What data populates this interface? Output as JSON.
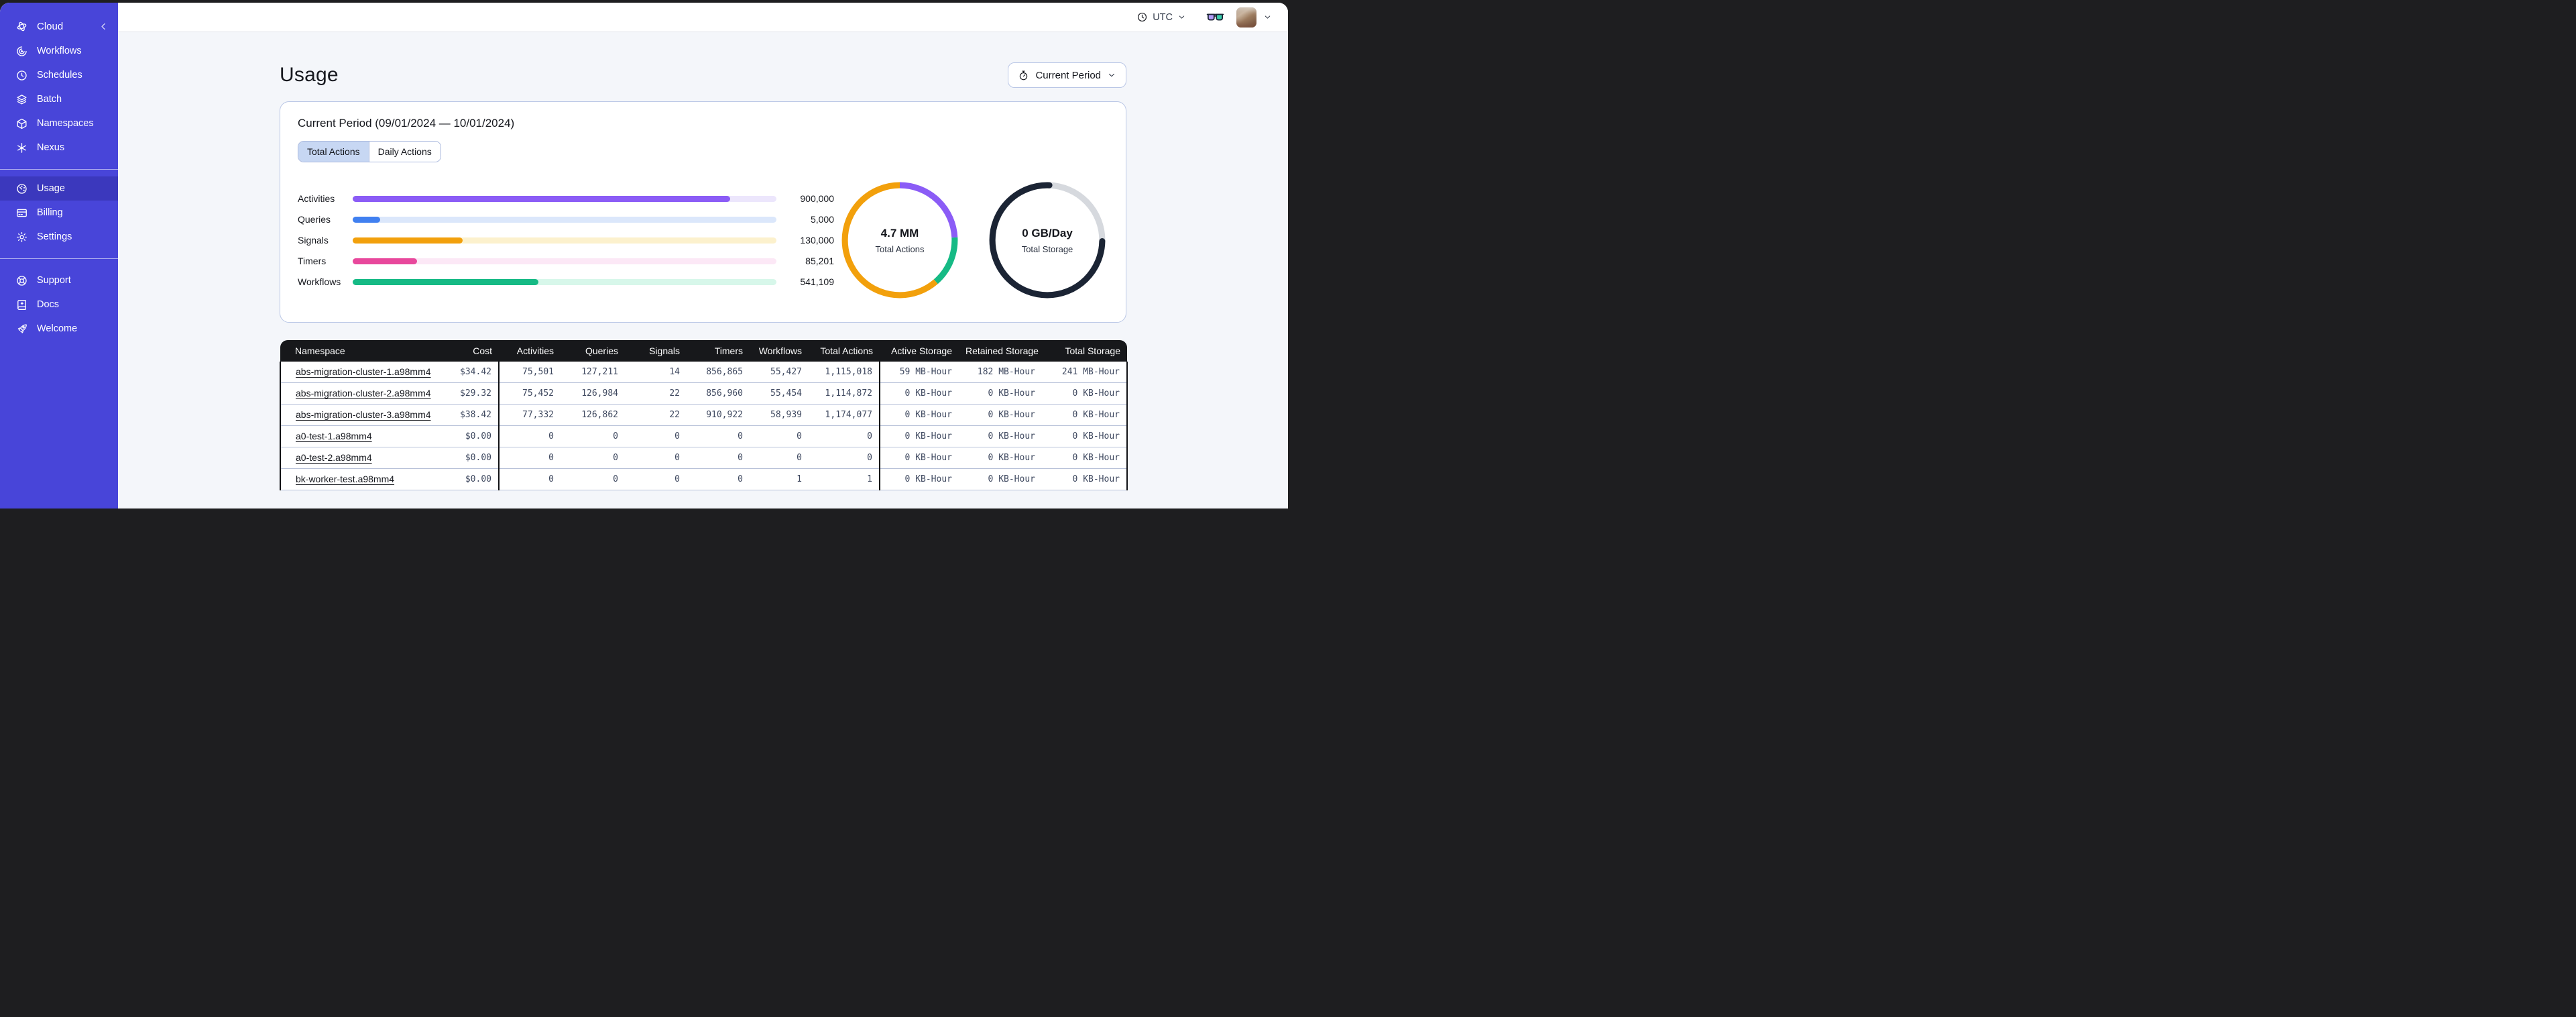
{
  "sidebar": {
    "brand_label": "Cloud",
    "brand_icon": "temporal-logo-icon",
    "collapse_icon": "chevron-left-icon",
    "groups": [
      {
        "items": [
          {
            "label": "Workflows",
            "icon": "workflows-icon",
            "active": false
          },
          {
            "label": "Schedules",
            "icon": "schedules-icon",
            "active": false
          },
          {
            "label": "Batch",
            "icon": "batch-icon",
            "active": false
          },
          {
            "label": "Namespaces",
            "icon": "namespaces-icon",
            "active": false
          },
          {
            "label": "Nexus",
            "icon": "nexus-icon",
            "active": false
          }
        ]
      },
      {
        "items": [
          {
            "label": "Usage",
            "icon": "usage-icon",
            "active": true
          },
          {
            "label": "Billing",
            "icon": "billing-icon",
            "active": false
          },
          {
            "label": "Settings",
            "icon": "settings-icon",
            "active": false
          }
        ]
      },
      {
        "items": [
          {
            "label": "Support",
            "icon": "support-icon",
            "active": false
          },
          {
            "label": "Docs",
            "icon": "docs-icon",
            "active": false
          },
          {
            "label": "Welcome",
            "icon": "welcome-icon",
            "active": false
          }
        ]
      }
    ],
    "colors": {
      "bg": "#4845d9",
      "active_bg": "#3b38bd"
    }
  },
  "header": {
    "timezone_label": "UTC",
    "timezone_icon": "clock-icon",
    "glasses_icon": "glasses-icon",
    "avatar": "user-avatar-photo"
  },
  "page": {
    "title": "Usage",
    "period_button": {
      "label": "Current Period",
      "icon": "stopwatch-icon"
    }
  },
  "usage_card": {
    "title": "Current Period (09/01/2024 — 10/01/2024)",
    "tabs": [
      {
        "label": "Total Actions",
        "active": true
      },
      {
        "label": "Daily Actions",
        "active": false
      }
    ],
    "bars": [
      {
        "label": "Activities",
        "value": "900,000",
        "pct": 89.1,
        "color": "#8b5cf6",
        "track": "#ece6fc"
      },
      {
        "label": "Queries",
        "value": "5,000",
        "pct": 6.5,
        "color": "#4080f0",
        "track": "#dbe7fb"
      },
      {
        "label": "Signals",
        "value": "130,000",
        "pct": 25.9,
        "color": "#f2a00c",
        "track": "#fcf1cd"
      },
      {
        "label": "Timers",
        "value": "85,201",
        "pct": 15.2,
        "color": "#e8489c",
        "track": "#fce8f6"
      },
      {
        "label": "Workflows",
        "value": "541,109",
        "pct": 43.8,
        "color": "#16ba85",
        "track": "#d7f7ea"
      }
    ],
    "donuts": [
      {
        "value": "4.7 MM",
        "label": "Total Actions",
        "segments": [
          {
            "color": "#8b5cf6",
            "start": 0.0,
            "frac": 0.242
          },
          {
            "color": "#16ba85",
            "start": 0.242,
            "frac": 0.144
          },
          {
            "color": "#f2a00c",
            "start": 0.386,
            "frac": 0.614
          }
        ]
      },
      {
        "value": "0 GB/Day",
        "label": "Total Storage",
        "segments": [
          {
            "color": "#d6d9de",
            "start": 0.006,
            "frac": 0.247
          },
          {
            "color": "#1b2434",
            "start": 0.253,
            "frac": 0.753,
            "round_cap": true
          }
        ]
      }
    ]
  },
  "table": {
    "columns": [
      {
        "label": "Namespace",
        "align": "left"
      },
      {
        "label": "Cost",
        "align": "right"
      },
      {
        "label": "Activities",
        "align": "right",
        "group_start": true
      },
      {
        "label": "Queries",
        "align": "right"
      },
      {
        "label": "Signals",
        "align": "right"
      },
      {
        "label": "Timers",
        "align": "right"
      },
      {
        "label": "Workflows",
        "align": "right"
      },
      {
        "label": "Total Actions",
        "align": "right"
      },
      {
        "label": "Active Storage",
        "align": "right",
        "group_start": true
      },
      {
        "label": "Retained Storage",
        "align": "right"
      },
      {
        "label": "Total Storage",
        "align": "right"
      }
    ],
    "rows": [
      {
        "cells": [
          "abs-migration-cluster-1.a98mm4",
          "$34.42",
          "75,501",
          "127,211",
          "14",
          "856,865",
          "55,427",
          "1,115,018",
          "59 MB-Hour",
          "182 MB-Hour",
          "241 MB-Hour"
        ]
      },
      {
        "cells": [
          "abs-migration-cluster-2.a98mm4",
          "$29.32",
          "75,452",
          "126,984",
          "22",
          "856,960",
          "55,454",
          "1,114,872",
          "0 KB-Hour",
          "0 KB-Hour",
          "0 KB-Hour"
        ]
      },
      {
        "cells": [
          "abs-migration-cluster-3.a98mm4",
          "$38.42",
          "77,332",
          "126,862",
          "22",
          "910,922",
          "58,939",
          "1,174,077",
          "0 KB-Hour",
          "0 KB-Hour",
          "0 KB-Hour"
        ]
      },
      {
        "cells": [
          "a0-test-1.a98mm4",
          "$0.00",
          "0",
          "0",
          "0",
          "0",
          "0",
          "0",
          "0 KB-Hour",
          "0 KB-Hour",
          "0 KB-Hour"
        ]
      },
      {
        "cells": [
          "a0-test-2.a98mm4",
          "$0.00",
          "0",
          "0",
          "0",
          "0",
          "0",
          "0",
          "0 KB-Hour",
          "0 KB-Hour",
          "0 KB-Hour"
        ]
      },
      {
        "cells": [
          "bk-worker-test.a98mm4",
          "$0.00",
          "0",
          "0",
          "0",
          "0",
          "1",
          "1",
          "0 KB-Hour",
          "0 KB-Hour",
          "0 KB-Hour"
        ]
      }
    ]
  }
}
